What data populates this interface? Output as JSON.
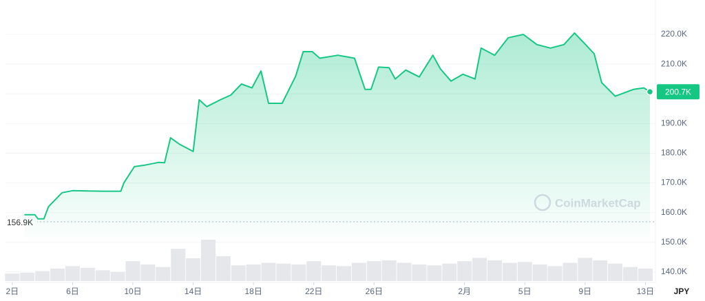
{
  "chart_data": {
    "type": "line",
    "color": "#16c784",
    "x": [
      0.8,
      1.5,
      1.7,
      2.1,
      2.4,
      3.3,
      4,
      5,
      6,
      7.2,
      7.4,
      8.1,
      8.8,
      9.7,
      10.1,
      10.5,
      11.1,
      12,
      12.4,
      12.9,
      13.8,
      14.5,
      15.2,
      15.9,
      16.5,
      17,
      17.9,
      18.8,
      19.3,
      19.9,
      20.4,
      21.6,
      22.7,
      23.4,
      23.8,
      24.3,
      25,
      25.4,
      26.1,
      27,
      27.9,
      28.4,
      29.1,
      29.9,
      30.7,
      31.1,
      32,
      32.9,
      33.9,
      34.8,
      35.7,
      36.6,
      37.3,
      37.9,
      38.6,
      39.1,
      40,
      41.2,
      41.9,
      42.3
    ],
    "values": [
      159300,
      159300,
      157900,
      157900,
      162000,
      166700,
      167400,
      167300,
      167200,
      167200,
      170000,
      175500,
      176000,
      176900,
      176800,
      185200,
      183000,
      180600,
      198000,
      195700,
      198000,
      199600,
      203300,
      202000,
      207700,
      196800,
      196800,
      206000,
      214200,
      214200,
      212000,
      213000,
      212000,
      201500,
      201500,
      209000,
      208800,
      205000,
      208000,
      205700,
      213000,
      208400,
      204300,
      206600,
      205000,
      215400,
      213000,
      218900,
      220000,
      216600,
      215400,
      216600,
      220500,
      217300,
      213500,
      203800,
      199200,
      201500,
      202000,
      200700
    ],
    "xlim": [
      -0.45,
      42.3
    ],
    "xticks": [
      {
        "value": 0,
        "label": "2日"
      },
      {
        "value": 4,
        "label": "6日"
      },
      {
        "value": 8,
        "label": "10日"
      },
      {
        "value": 12,
        "label": "14日"
      },
      {
        "value": 16,
        "label": "18日"
      },
      {
        "value": 20,
        "label": "22日"
      },
      {
        "value": 24,
        "label": "26日"
      },
      {
        "value": 30,
        "label": "2月"
      },
      {
        "value": 34,
        "label": "5日"
      },
      {
        "value": 38,
        "label": "9日"
      },
      {
        "value": 42,
        "label": "13日"
      }
    ],
    "ylim": [
      136500,
      231600
    ],
    "yticks": [
      {
        "value": 140000,
        "label": "140.0K"
      },
      {
        "value": 150000,
        "label": "150.0K"
      },
      {
        "value": 160000,
        "label": "160.0K"
      },
      {
        "value": 170000,
        "label": "170.0K"
      },
      {
        "value": 180000,
        "label": "180.0K"
      },
      {
        "value": 190000,
        "label": "190.0K"
      },
      {
        "value": 200000,
        "label": "200.0K"
      },
      {
        "value": 210000,
        "label": "210.0K"
      },
      {
        "value": 220000,
        "label": "220.0K"
      }
    ],
    "grid": true,
    "baseline": {
      "value": 156900,
      "label": "156.9K"
    },
    "last_price": {
      "value": 200700,
      "label": "200.7K"
    },
    "currency": "JPY",
    "watermark": "CoinMarketCap",
    "volume": {
      "color": "#e6e7ea",
      "x": [
        0,
        1,
        2,
        3,
        4,
        5,
        6,
        7,
        8,
        9,
        10,
        11,
        12,
        13,
        14,
        15,
        16,
        17,
        18,
        19,
        20,
        21,
        22,
        23,
        24,
        25,
        26,
        27,
        28,
        29,
        30,
        31,
        32,
        33,
        34,
        35,
        36,
        37,
        38,
        39,
        40,
        41,
        42
      ],
      "values": [
        18,
        20,
        24,
        30,
        36,
        32,
        26,
        22,
        48,
        40,
        34,
        78,
        55,
        100,
        60,
        38,
        40,
        44,
        42,
        40,
        48,
        38,
        36,
        44,
        48,
        50,
        44,
        40,
        38,
        42,
        48,
        56,
        50,
        44,
        46,
        40,
        36,
        44,
        56,
        50,
        42,
        34,
        30
      ]
    },
    "y2lim": [
      0,
      100
    ]
  }
}
